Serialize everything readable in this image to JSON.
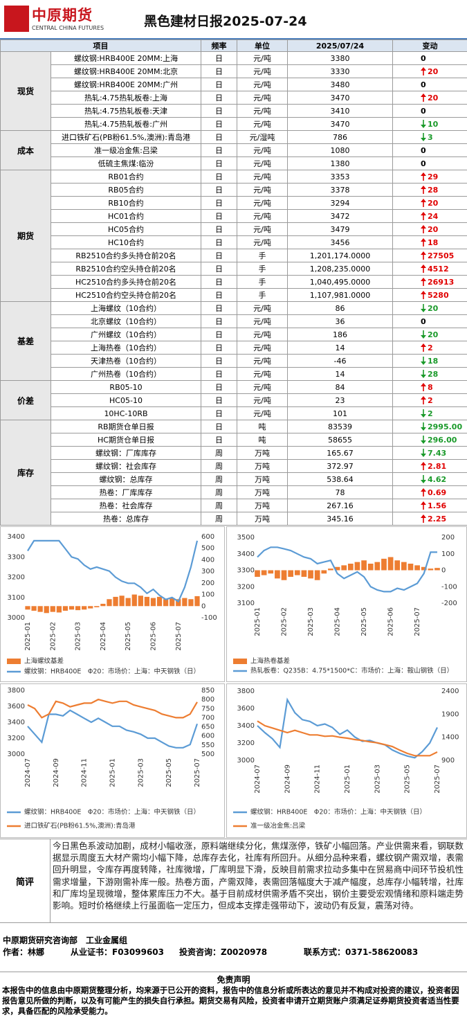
{
  "header": {
    "logo_cn": "中原期货",
    "logo_en": "CENTRAL CHINA FUTURES",
    "title": "黑色建材日报2025-07-24"
  },
  "table": {
    "headers": [
      "项目",
      "频率",
      "单位",
      "2025/07/24",
      "变动"
    ],
    "groups": [
      {
        "name": "现货",
        "rows": [
          {
            "item": "螺纹钢:HRB400E 20MM:上海",
            "freq": "日",
            "unit": "元/吨",
            "value": "3380",
            "change": "0",
            "dir": "none"
          },
          {
            "item": "螺纹钢:HRB400E 20MM:北京",
            "freq": "日",
            "unit": "元/吨",
            "value": "3330",
            "change": "20",
            "dir": "up"
          },
          {
            "item": "螺纹钢:HRB400E 20MM:广州",
            "freq": "日",
            "unit": "元/吨",
            "value": "3480",
            "change": "0",
            "dir": "none"
          },
          {
            "item": "热轧:4.75热轧板卷:上海",
            "freq": "日",
            "unit": "元/吨",
            "value": "3470",
            "change": "20",
            "dir": "up"
          },
          {
            "item": "热轧:4.75热轧板卷:天津",
            "freq": "日",
            "unit": "元/吨",
            "value": "3410",
            "change": "0",
            "dir": "none"
          },
          {
            "item": "热轧:4.75热轧板卷:广州",
            "freq": "日",
            "unit": "元/吨",
            "value": "3470",
            "change": "10",
            "dir": "down"
          }
        ]
      },
      {
        "name": "成本",
        "rows": [
          {
            "item": "进口铁矿石(PB粉61.5%,澳洲):青岛港",
            "freq": "日",
            "unit": "元/湿吨",
            "value": "786",
            "change": "3",
            "dir": "down"
          },
          {
            "item": "准一级冶金焦:吕梁",
            "freq": "日",
            "unit": "元/吨",
            "value": "1080",
            "change": "0",
            "dir": "none"
          },
          {
            "item": "低硫主焦煤:临汾",
            "freq": "日",
            "unit": "元/吨",
            "value": "1380",
            "change": "0",
            "dir": "none"
          }
        ]
      },
      {
        "name": "期货",
        "rows": [
          {
            "item": "RB01合约",
            "freq": "日",
            "unit": "元/吨",
            "value": "3353",
            "change": "29",
            "dir": "up"
          },
          {
            "item": "RB05合约",
            "freq": "日",
            "unit": "元/吨",
            "value": "3378",
            "change": "28",
            "dir": "up"
          },
          {
            "item": "RB10合约",
            "freq": "日",
            "unit": "元/吨",
            "value": "3294",
            "change": "20",
            "dir": "up"
          },
          {
            "item": "HC01合约",
            "freq": "日",
            "unit": "元/吨",
            "value": "3472",
            "change": "24",
            "dir": "up"
          },
          {
            "item": "HC05合约",
            "freq": "日",
            "unit": "元/吨",
            "value": "3479",
            "change": "20",
            "dir": "up"
          },
          {
            "item": "HC10合约",
            "freq": "日",
            "unit": "元/吨",
            "value": "3456",
            "change": "18",
            "dir": "up"
          },
          {
            "item": "RB2510合约多头持仓前20名",
            "freq": "日",
            "unit": "手",
            "value": "1,201,174.0000",
            "change": "27505",
            "dir": "up"
          },
          {
            "item": "RB2510合约空头持仓前20名",
            "freq": "日",
            "unit": "手",
            "value": "1,208,235.0000",
            "change": "4512",
            "dir": "up"
          },
          {
            "item": "HC2510合约多头持仓前20名",
            "freq": "日",
            "unit": "手",
            "value": "1,040,495.0000",
            "change": "26913",
            "dir": "up"
          },
          {
            "item": "HC2510合约空头持仓前20名",
            "freq": "日",
            "unit": "手",
            "value": "1,107,981.0000",
            "change": "5280",
            "dir": "up"
          }
        ]
      },
      {
        "name": "基差",
        "rows": [
          {
            "item": "上海螺纹（10合约）",
            "freq": "日",
            "unit": "元/吨",
            "value": "86",
            "change": "20",
            "dir": "down"
          },
          {
            "item": "北京螺纹（10合约）",
            "freq": "日",
            "unit": "元/吨",
            "value": "36",
            "change": "0",
            "dir": "none"
          },
          {
            "item": "广州螺纹（10合约）",
            "freq": "日",
            "unit": "元/吨",
            "value": "186",
            "change": "20",
            "dir": "down"
          },
          {
            "item": "上海热卷（10合约）",
            "freq": "日",
            "unit": "元/吨",
            "value": "14",
            "change": "2",
            "dir": "up"
          },
          {
            "item": "天津热卷（10合约）",
            "freq": "日",
            "unit": "元/吨",
            "value": "-46",
            "change": "18",
            "dir": "down"
          },
          {
            "item": "广州热卷（10合约）",
            "freq": "日",
            "unit": "元/吨",
            "value": "14",
            "change": "28",
            "dir": "down"
          }
        ]
      },
      {
        "name": "价差",
        "rows": [
          {
            "item": "RB05-10",
            "freq": "日",
            "unit": "元/吨",
            "value": "84",
            "change": "8",
            "dir": "up"
          },
          {
            "item": "HC05-10",
            "freq": "日",
            "unit": "元/吨",
            "value": "23",
            "change": "2",
            "dir": "up"
          },
          {
            "item": "10HC-10RB",
            "freq": "日",
            "unit": "元/吨",
            "value": "101",
            "change": "2",
            "dir": "down"
          }
        ]
      },
      {
        "name": "库存",
        "rows": [
          {
            "item": "RB期货仓单日报",
            "freq": "日",
            "unit": "吨",
            "value": "83539",
            "change": "2995.00",
            "dir": "down"
          },
          {
            "item": "HC期货仓单日报",
            "freq": "日",
            "unit": "吨",
            "value": "58655",
            "change": "296.00",
            "dir": "down"
          },
          {
            "item": "螺纹钢：厂库库存",
            "freq": "周",
            "unit": "万吨",
            "value": "165.67",
            "change": "7.43",
            "dir": "down"
          },
          {
            "item": "螺纹钢：社会库存",
            "freq": "周",
            "unit": "万吨",
            "value": "372.97",
            "change": "2.81",
            "dir": "up"
          },
          {
            "item": "螺纹钢：总库存",
            "freq": "周",
            "unit": "万吨",
            "value": "538.64",
            "change": "4.62",
            "dir": "down"
          },
          {
            "item": "热卷：厂库库存",
            "freq": "周",
            "unit": "万吨",
            "value": "78",
            "change": "0.69",
            "dir": "up"
          },
          {
            "item": "热卷：社会库存",
            "freq": "周",
            "unit": "万吨",
            "value": "267.16",
            "change": "1.56",
            "dir": "up"
          },
          {
            "item": "热卷：总库存",
            "freq": "周",
            "unit": "万吨",
            "value": "345.16",
            "change": "2.25",
            "dir": "up"
          }
        ]
      }
    ]
  },
  "chart_data": [
    {
      "type": "combo",
      "categories": [
        "2025-01",
        null,
        null,
        null,
        "2025-02",
        null,
        null,
        null,
        "2025-03",
        null,
        null,
        null,
        "2025-04",
        null,
        null,
        null,
        "2025-05",
        null,
        null,
        null,
        "2025-06",
        null,
        null,
        null,
        "2025-07",
        null,
        null,
        null
      ],
      "ylim": [
        3000,
        3400
      ],
      "yticks": [
        3000,
        3100,
        3200,
        3300,
        3400
      ],
      "y2lim": [
        -100,
        600
      ],
      "y2ticks": [
        -100,
        0,
        100,
        200,
        300,
        400,
        500,
        600
      ],
      "series": [
        {
          "name": "上海螺纹基差",
          "color": "#ed7d31",
          "kind": "bar",
          "axis": "y2",
          "values": [
            -30,
            -40,
            -50,
            -60,
            -50,
            -55,
            -40,
            -30,
            -35,
            -30,
            -20,
            -10,
            20,
            60,
            80,
            90,
            70,
            100,
            90,
            80,
            70,
            80,
            60,
            70,
            60,
            70,
            60,
            86
          ]
        },
        {
          "name": "螺纹钢：HRB400E　Φ20：市场价：上海：中天钢铁（日）",
          "color": "#5b9bd5",
          "kind": "line",
          "values": [
            3330,
            3380,
            3380,
            3380,
            3380,
            3380,
            3340,
            3300,
            3290,
            3260,
            3240,
            3250,
            3240,
            3230,
            3200,
            3180,
            3170,
            3170,
            3150,
            3120,
            3140,
            3110,
            3090,
            3100,
            3080,
            3150,
            3250,
            3380
          ]
        }
      ]
    },
    {
      "type": "combo",
      "categories": [
        "2025-01",
        null,
        null,
        null,
        "2025-02",
        null,
        null,
        null,
        "2025-03",
        null,
        null,
        null,
        "2025-04",
        null,
        null,
        null,
        "2025-05",
        null,
        null,
        null,
        "2025-06",
        null,
        null,
        null,
        "2025-07",
        null,
        null,
        null
      ],
      "ylim": [
        3100,
        3500
      ],
      "yticks": [
        3100,
        3200,
        3300,
        3400,
        3500
      ],
      "y2lim": [
        -200,
        200
      ],
      "y2ticks": [
        -200,
        -100,
        0,
        100,
        200
      ],
      "series": [
        {
          "name": "上海热卷基差",
          "color": "#ed7d31",
          "kind": "bar",
          "axis": "y2",
          "values": [
            -40,
            -30,
            -20,
            -50,
            -60,
            -40,
            -30,
            -40,
            -50,
            -60,
            -20,
            10,
            20,
            30,
            40,
            50,
            60,
            40,
            50,
            70,
            80,
            60,
            50,
            40,
            30,
            20,
            10,
            14
          ]
        },
        {
          "name": "热轧板卷：Q235B：4.75*1500*C：市场价：上海：鞍山钢铁（日）",
          "color": "#5b9bd5",
          "kind": "line",
          "values": [
            3380,
            3420,
            3440,
            3440,
            3430,
            3420,
            3400,
            3380,
            3370,
            3340,
            3350,
            3360,
            3280,
            3250,
            3270,
            3290,
            3260,
            3200,
            3180,
            3170,
            3170,
            3190,
            3180,
            3200,
            3220,
            3280,
            3410,
            3410
          ]
        }
      ]
    },
    {
      "type": "line",
      "categories": [
        "2024-07",
        null,
        null,
        null,
        "2024-09",
        null,
        null,
        null,
        "2024-11",
        null,
        null,
        null,
        "2025-01",
        null,
        null,
        null,
        "2025-03",
        null,
        null,
        null,
        "2025-05",
        null,
        null,
        null,
        "2025-07"
      ],
      "ylim": [
        3000,
        3800
      ],
      "yticks": [
        3000,
        3200,
        3400,
        3600,
        3800
      ],
      "y2lim": [
        500,
        850
      ],
      "y2ticks": [
        500,
        550,
        600,
        650,
        700,
        750,
        800,
        850
      ],
      "series": [
        {
          "name": "螺纹钢：HRB400E　Φ20：市场价：上海：中天钢铁（日）",
          "color": "#5b9bd5",
          "kind": "line",
          "values": [
            3350,
            3250,
            3150,
            3500,
            3500,
            3480,
            3550,
            3500,
            3450,
            3400,
            3450,
            3400,
            3350,
            3350,
            3300,
            3280,
            3250,
            3200,
            3200,
            3150,
            3100,
            3080,
            3080,
            3120,
            3380
          ]
        },
        {
          "name": "进口铁矿石(PB粉61.5%,澳洲):青岛港",
          "color": "#ed7d31",
          "kind": "line",
          "axis": "y2",
          "values": [
            770,
            750,
            700,
            720,
            790,
            780,
            760,
            770,
            780,
            780,
            800,
            790,
            780,
            790,
            790,
            770,
            760,
            750,
            740,
            720,
            710,
            700,
            700,
            720,
            786
          ]
        }
      ]
    },
    {
      "type": "line",
      "categories": [
        "2024-07",
        null,
        null,
        null,
        "2024-09",
        null,
        null,
        null,
        "2024-11",
        null,
        null,
        null,
        "2025-01",
        null,
        null,
        null,
        "2025-03",
        null,
        null,
        null,
        "2025-05",
        null,
        null,
        null,
        "2025-07"
      ],
      "ylim": [
        3000,
        3800
      ],
      "yticks": [
        3000,
        3200,
        3400,
        3600,
        3800
      ],
      "y2lim": [
        900,
        2400
      ],
      "y2ticks": [
        900,
        1400,
        1900,
        2400
      ],
      "series": [
        {
          "name": "螺纹钢：HRB400E　Φ20：市场价：上海：中天钢铁（日）",
          "color": "#5b9bd5",
          "kind": "line",
          "values": [
            3400,
            3320,
            3250,
            3150,
            3700,
            3550,
            3470,
            3450,
            3400,
            3420,
            3380,
            3300,
            3350,
            3270,
            3220,
            3230,
            3200,
            3180,
            3120,
            3080,
            3050,
            3030,
            3100,
            3200,
            3380
          ]
        },
        {
          "name": "准一级冶金焦:吕梁",
          "color": "#ed7d31",
          "kind": "line",
          "axis": "y2",
          "values": [
            1750,
            1650,
            1600,
            1550,
            1500,
            1550,
            1500,
            1450,
            1450,
            1420,
            1430,
            1400,
            1380,
            1350,
            1330,
            1300,
            1280,
            1240,
            1200,
            1120,
            1050,
            1000,
            1000,
            1000,
            1080
          ]
        }
      ]
    }
  ],
  "comment": {
    "label": "简评",
    "text": "今日黑色系波动加剧，成材小幅收涨，原料端继续分化，焦煤涨停，铁矿小幅回落。产业供需来看，钢联数据显示周度五大材产需均小幅下降，总库存去化，社库有所回升。从细分品种来看，螺纹钢产需双增，表需回升明显，令库存再度转降，社库微增，厂库明显下滑，反映目前需求拉动多集中在贸易商中间环节投机性需求增量，下游刚需补库一般。热卷方面，产需双降，表需回落幅度大于减产幅度，总库存小幅转增，社库和厂库均呈现微增，整体累库压力不大。基于目前成材供需矛盾不突出，钢价主要受宏观情绪和原料端走势影响。短时价格继续上行虽面临一定压力，但成本支撑走强带动下，波动仍有反复，震荡对待。"
  },
  "footer": {
    "dept": "中原期货研究咨询部　工业金属组",
    "author": "作者：林娜",
    "cert": "从业证书：F03099603",
    "consult": "投资咨询：Z0020978",
    "contact": "联系方式：0371-58620083",
    "disclaimer_title": "免责声明",
    "disclaimer": "本报告中的信息由中原期货整理分析，均来源于已公开的资料，报告中的信息分析或所表达的意见并不构成对投资的建议，投资者因报告意见所做的判断，以及有可能产生的损失自行承担。期货交易有风险，投资者申请开立期货账户须满足证券期货投资者适当性要求，具备匹配的风险承受能力。"
  }
}
